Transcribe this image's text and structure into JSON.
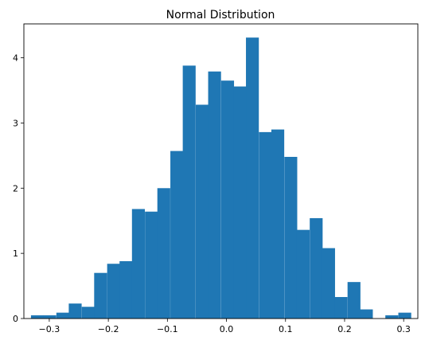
{
  "chart_data": {
    "type": "bar",
    "title": "Normal Distribution",
    "xlabel": "",
    "ylabel": "",
    "xlim": [
      -0.343,
      0.324
    ],
    "ylim": [
      0,
      4.52
    ],
    "grid": false,
    "bar_color": "#1f77b4",
    "bin_width": 0.0214,
    "bins": [
      {
        "x0": -0.331,
        "value": 0.05
      },
      {
        "x0": -0.31,
        "value": 0.05
      },
      {
        "x0": -0.288,
        "value": 0.09
      },
      {
        "x0": -0.267,
        "value": 0.23
      },
      {
        "x0": -0.245,
        "value": 0.18
      },
      {
        "x0": -0.224,
        "value": 0.7
      },
      {
        "x0": -0.202,
        "value": 0.84
      },
      {
        "x0": -0.181,
        "value": 0.88
      },
      {
        "x0": -0.16,
        "value": 1.68
      },
      {
        "x0": -0.138,
        "value": 1.64
      },
      {
        "x0": -0.117,
        "value": 2.0
      },
      {
        "x0": -0.095,
        "value": 2.57
      },
      {
        "x0": -0.074,
        "value": 3.88
      },
      {
        "x0": -0.052,
        "value": 3.28
      },
      {
        "x0": -0.031,
        "value": 3.79
      },
      {
        "x0": -0.009,
        "value": 3.65
      },
      {
        "x0": 0.012,
        "value": 3.56
      },
      {
        "x0": 0.033,
        "value": 4.31
      },
      {
        "x0": 0.055,
        "value": 2.86
      },
      {
        "x0": 0.076,
        "value": 2.9
      },
      {
        "x0": 0.098,
        "value": 2.48
      },
      {
        "x0": 0.119,
        "value": 1.36
      },
      {
        "x0": 0.141,
        "value": 1.54
      },
      {
        "x0": 0.162,
        "value": 1.08
      },
      {
        "x0": 0.183,
        "value": 0.33
      },
      {
        "x0": 0.205,
        "value": 0.56
      },
      {
        "x0": 0.226,
        "value": 0.14
      },
      {
        "x0": 0.248,
        "value": 0.0
      },
      {
        "x0": 0.269,
        "value": 0.05
      },
      {
        "x0": 0.291,
        "value": 0.09
      }
    ],
    "xticks": [
      {
        "value": -0.3,
        "label": "−0.3"
      },
      {
        "value": -0.2,
        "label": "−0.2"
      },
      {
        "value": -0.1,
        "label": "−0.1"
      },
      {
        "value": 0.0,
        "label": "0.0"
      },
      {
        "value": 0.1,
        "label": "0.1"
      },
      {
        "value": 0.2,
        "label": "0.2"
      },
      {
        "value": 0.3,
        "label": "0.3"
      }
    ],
    "yticks": [
      {
        "value": 0,
        "label": "0"
      },
      {
        "value": 1,
        "label": "1"
      },
      {
        "value": 2,
        "label": "2"
      },
      {
        "value": 3,
        "label": "3"
      },
      {
        "value": 4,
        "label": "4"
      }
    ]
  }
}
